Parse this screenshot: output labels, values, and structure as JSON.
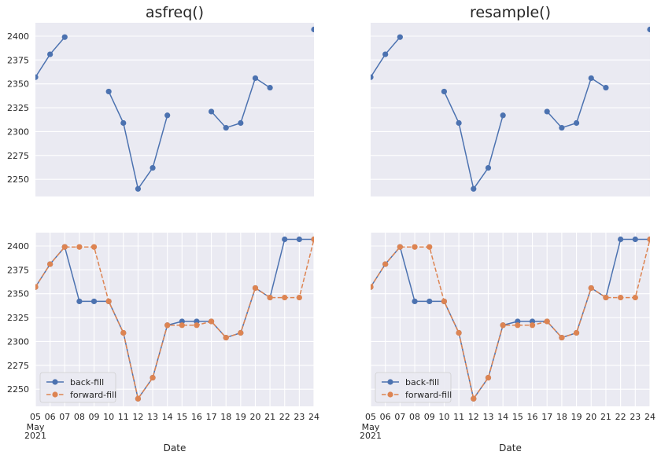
{
  "chart_data": [
    {
      "type": "line",
      "title": "asfreq()",
      "panel": "top-left",
      "x": [
        "05",
        "06",
        "07",
        "08",
        "09",
        "10",
        "11",
        "12",
        "13",
        "14",
        "15",
        "16",
        "17",
        "18",
        "19",
        "20",
        "21",
        "22",
        "23",
        "24"
      ],
      "ylim": [
        2232,
        2414
      ],
      "yticks": [
        2250,
        2275,
        2300,
        2325,
        2350,
        2375,
        2400
      ],
      "grid": true,
      "series": [
        {
          "values": [
            2357,
            2381,
            2399,
            null,
            null,
            2342,
            2309,
            2240,
            2262,
            2317,
            null,
            null,
            2321,
            2304,
            2309,
            2356,
            2346,
            null,
            null,
            2407
          ],
          "color": "#4c72b0",
          "style": "solid"
        }
      ]
    },
    {
      "type": "line",
      "title": "resample()",
      "panel": "top-right",
      "x": [
        "05",
        "06",
        "07",
        "08",
        "09",
        "10",
        "11",
        "12",
        "13",
        "14",
        "15",
        "16",
        "17",
        "18",
        "19",
        "20",
        "21",
        "22",
        "23",
        "24"
      ],
      "ylim": [
        2232,
        2414
      ],
      "grid": true,
      "series": [
        {
          "values": [
            2357,
            2381,
            2399,
            null,
            null,
            2342,
            2309,
            2240,
            2262,
            2317,
            null,
            null,
            2321,
            2304,
            2309,
            2356,
            2346,
            null,
            null,
            2407
          ],
          "color": "#4c72b0",
          "style": "solid"
        }
      ]
    },
    {
      "type": "line",
      "panel": "bottom-left",
      "x": [
        "05",
        "06",
        "07",
        "08",
        "09",
        "10",
        "11",
        "12",
        "13",
        "14",
        "15",
        "16",
        "17",
        "18",
        "19",
        "20",
        "21",
        "22",
        "23",
        "24"
      ],
      "xtick_sub": [
        "May",
        "2021"
      ],
      "xlabel": "Date",
      "ylim": [
        2232,
        2414
      ],
      "yticks": [
        2250,
        2275,
        2300,
        2325,
        2350,
        2375,
        2400
      ],
      "grid": true,
      "legend": "lower-left",
      "series": [
        {
          "name": "back-fill",
          "values": [
            2357,
            2381,
            2399,
            2342,
            2342,
            2342,
            2309,
            2240,
            2262,
            2317,
            2321,
            2321,
            2321,
            2304,
            2309,
            2356,
            2346,
            2407,
            2407,
            2407
          ],
          "color": "#4c72b0",
          "style": "solid"
        },
        {
          "name": "forward-fill",
          "values": [
            2357,
            2381,
            2399,
            2399,
            2399,
            2342,
            2309,
            2240,
            2262,
            2317,
            2317,
            2317,
            2321,
            2304,
            2309,
            2356,
            2346,
            2346,
            2346,
            2407
          ],
          "color": "#dd8452",
          "style": "dashed"
        }
      ]
    },
    {
      "type": "line",
      "panel": "bottom-right",
      "x": [
        "05",
        "06",
        "07",
        "08",
        "09",
        "10",
        "11",
        "12",
        "13",
        "14",
        "15",
        "16",
        "17",
        "18",
        "19",
        "20",
        "21",
        "22",
        "23",
        "24"
      ],
      "xtick_sub": [
        "May",
        "2021"
      ],
      "xlabel": "Date",
      "ylim": [
        2232,
        2414
      ],
      "grid": true,
      "legend": "lower-left",
      "series": [
        {
          "name": "back-fill",
          "values": [
            2357,
            2381,
            2399,
            2342,
            2342,
            2342,
            2309,
            2240,
            2262,
            2317,
            2321,
            2321,
            2321,
            2304,
            2309,
            2356,
            2346,
            2407,
            2407,
            2407
          ],
          "color": "#4c72b0",
          "style": "solid"
        },
        {
          "name": "forward-fill",
          "values": [
            2357,
            2381,
            2399,
            2399,
            2399,
            2342,
            2309,
            2240,
            2262,
            2317,
            2317,
            2317,
            2321,
            2304,
            2309,
            2356,
            2346,
            2346,
            2346,
            2407
          ],
          "color": "#dd8452",
          "style": "dashed"
        }
      ]
    }
  ],
  "colors": {
    "axes_bg": "#eaeaf2",
    "grid": "#ffffff",
    "blue": "#4c72b0",
    "orange": "#dd8452"
  }
}
